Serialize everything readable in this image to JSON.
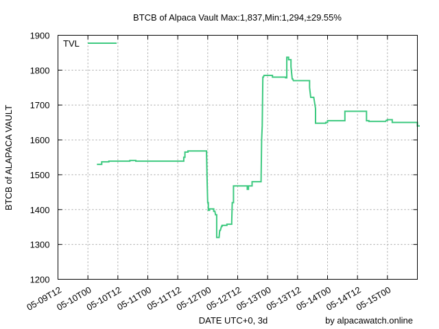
{
  "chart_data": {
    "type": "line",
    "title": "BTCB of Alpaca Vault Max:1,837,Min:1,294,±29.55%",
    "xlabel": "DATE UTC+0, 3d",
    "ylabel": "BTCB of ALAPACA VAULT",
    "credit": "by alpacawatch.online",
    "ylim": [
      1200,
      1900
    ],
    "yticks": [
      1200,
      1300,
      1400,
      1500,
      1600,
      1700,
      1800,
      1900
    ],
    "xlim": [
      0,
      6
    ],
    "xtick_labels": [
      "05-09T12",
      "05-10T00",
      "05-10T12",
      "05-11T00",
      "05-11T12",
      "05-12T00",
      "05-12T12",
      "05-13T00",
      "05-13T12",
      "05-14T00",
      "05-14T12",
      "05-15T00"
    ],
    "grid": true,
    "legend_position": "top-left",
    "colors": {
      "series": "#3cc97f"
    },
    "series": [
      {
        "name": "TVL",
        "x": [
          0.65,
          0.73,
          0.73,
          0.85,
          0.85,
          1.2,
          1.2,
          1.3,
          1.3,
          2.1,
          2.1,
          2.12,
          2.12,
          2.17,
          2.17,
          2.48,
          2.48,
          2.49,
          2.5,
          2.51,
          2.51,
          2.53,
          2.53,
          2.6,
          2.6,
          2.62,
          2.63,
          2.65,
          2.65,
          2.69,
          2.7,
          2.71,
          2.73,
          2.74,
          2.74,
          2.82,
          2.82,
          2.9,
          2.9,
          2.91,
          2.93,
          2.93,
          3.16,
          3.16,
          3.18,
          3.18,
          3.24,
          3.24,
          3.39,
          3.4,
          3.41,
          3.42,
          3.43,
          3.44,
          3.44,
          3.58,
          3.58,
          3.8,
          3.8,
          3.82,
          3.82,
          3.85,
          3.85,
          3.89,
          3.89,
          3.91,
          3.92,
          3.93,
          4.2,
          4.2,
          4.22,
          4.22,
          4.27,
          4.27,
          4.3,
          4.3,
          4.47,
          4.47,
          4.5,
          4.5,
          4.79,
          4.79,
          5.15,
          5.15,
          5.19,
          5.19,
          5.47,
          5.48,
          5.5,
          5.5,
          5.58,
          5.58,
          6.0,
          6.0,
          6.04
        ],
        "y": [
          1530,
          1530,
          1537,
          1537,
          1539,
          1539,
          1541,
          1541,
          1539,
          1539,
          1550,
          1550,
          1565,
          1565,
          1568,
          1568,
          1565,
          1480,
          1420,
          1420,
          1398,
          1398,
          1402,
          1402,
          1395,
          1395,
          1385,
          1385,
          1320,
          1320,
          1340,
          1340,
          1352,
          1352,
          1355,
          1355,
          1358,
          1358,
          1365,
          1420,
          1420,
          1468,
          1468,
          1458,
          1458,
          1468,
          1468,
          1480,
          1480,
          1600,
          1640,
          1780,
          1780,
          1785,
          1785,
          1785,
          1780,
          1780,
          1778,
          1778,
          1837,
          1837,
          1830,
          1830,
          1810,
          1775,
          1775,
          1770,
          1770,
          1750,
          1722,
          1722,
          1722,
          1722,
          1690,
          1648,
          1648,
          1650,
          1650,
          1655,
          1655,
          1682,
          1682,
          1655,
          1655,
          1653,
          1653,
          1656,
          1656,
          1658,
          1658,
          1650,
          1650,
          1640,
          1640
        ]
      }
    ]
  }
}
